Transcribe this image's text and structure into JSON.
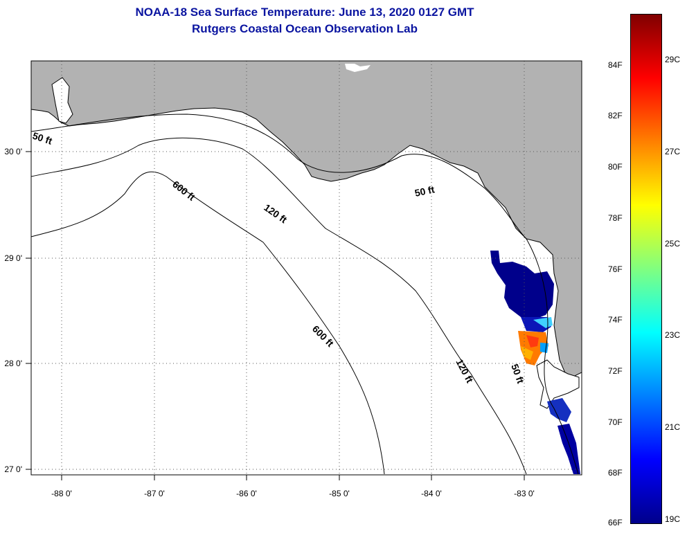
{
  "header": {
    "title_line1": "NOAA-18 Sea Surface Temperature:  June 13, 2020 0127 GMT",
    "title_line2": "Rutgers Coastal Ocean Observation Lab"
  },
  "map": {
    "lon_ticks": [
      "-88 0'",
      "-87 0'",
      "-86 0'",
      "-85 0'",
      "-84 0'",
      "-83 0'"
    ],
    "lat_ticks": [
      "30 0'",
      "29 0'",
      "28 0'",
      "27 0'"
    ],
    "isobath_labels": {
      "fifty_west": "50 ft",
      "fifty_north": "50 ft",
      "fifty_east": "50 ft",
      "oneTwenty_north": "120 ft",
      "oneTwenty_south": "120 ft",
      "sixHundred_north": "600 ft",
      "sixHundred_south": "600 ft"
    },
    "colors": {
      "land": "#b2b2b2",
      "water": "#ffffff",
      "coastline": "#000000",
      "isobath": "#000000",
      "grid": "#555555"
    }
  },
  "colorbar": {
    "fahrenheit_labels": [
      "84F",
      "82F",
      "80F",
      "78F",
      "76F",
      "74F",
      "72F",
      "70F",
      "68F",
      "66F"
    ],
    "celsius_labels": [
      "29C",
      "27C",
      "25C",
      "23C",
      "21C",
      "19C"
    ],
    "range_f": [
      66,
      86
    ],
    "gradient": [
      "#00008b",
      "#0000ff",
      "#0080ff",
      "#00ffff",
      "#80ff80",
      "#ffff00",
      "#ff8000",
      "#ff0000",
      "#800000"
    ]
  }
}
